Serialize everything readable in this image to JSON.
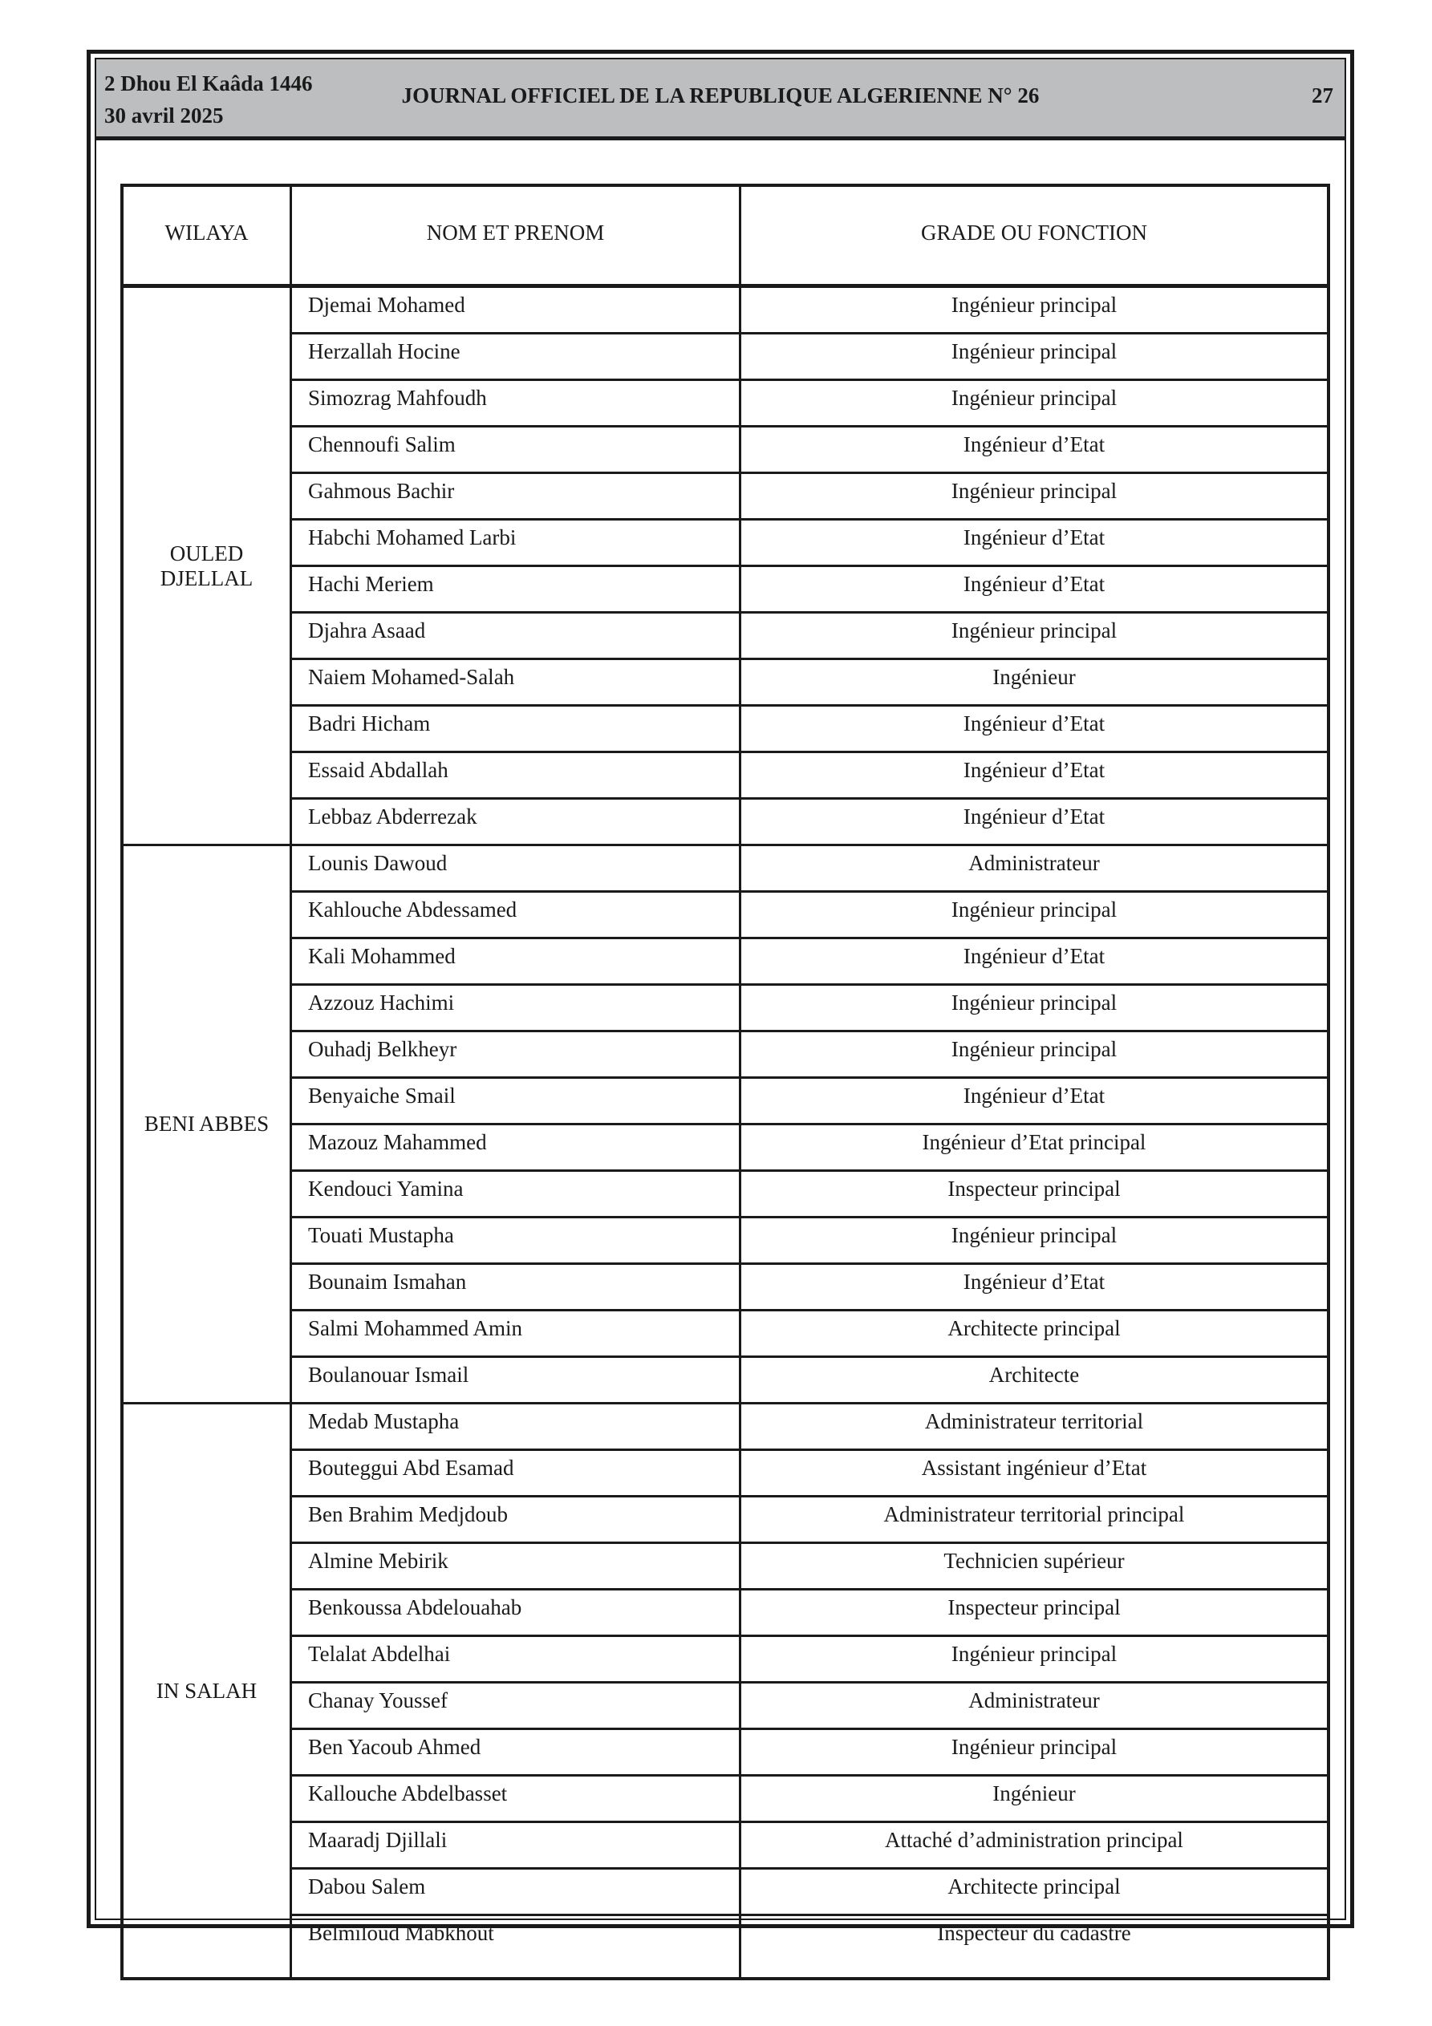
{
  "header": {
    "hijri_date": "2 Dhou El Kaâda 1446",
    "date": "30 avril 2025",
    "title": "JOURNAL OFFICIEL DE LA REPUBLIQUE ALGERIENNE N° 26",
    "page": "27"
  },
  "table": {
    "columns": [
      "WILAYA",
      "NOM ET PRENOM",
      "GRADE OU FONCTION"
    ],
    "groups": [
      {
        "wilaya": "OULED DJELLAL",
        "rows": [
          [
            "Djemai Mohamed",
            "Ingénieur principal"
          ],
          [
            "Herzallah Hocine",
            "Ingénieur principal"
          ],
          [
            "Simozrag Mahfoudh",
            "Ingénieur principal"
          ],
          [
            "Chennoufi Salim",
            "Ingénieur d’Etat"
          ],
          [
            "Gahmous Bachir",
            "Ingénieur principal"
          ],
          [
            "Habchi Mohamed Larbi",
            "Ingénieur d’Etat"
          ],
          [
            "Hachi Meriem",
            "Ingénieur d’Etat"
          ],
          [
            "Djahra Asaad",
            "Ingénieur principal"
          ],
          [
            "Naiem Mohamed-Salah",
            "Ingénieur"
          ],
          [
            "Badri Hicham",
            "Ingénieur d’Etat"
          ],
          [
            "Essaid Abdallah",
            "Ingénieur d’Etat"
          ],
          [
            "Lebbaz Abderrezak",
            "Ingénieur d’Etat"
          ]
        ]
      },
      {
        "wilaya": "BENI ABBES",
        "rows": [
          [
            "Lounis Dawoud",
            "Administrateur"
          ],
          [
            "Kahlouche Abdessamed",
            "Ingénieur principal"
          ],
          [
            "Kali Mohammed",
            "Ingénieur d’Etat"
          ],
          [
            "Azzouz Hachimi",
            "Ingénieur principal"
          ],
          [
            "Ouhadj Belkheyr",
            "Ingénieur principal"
          ],
          [
            "Benyaiche Smail",
            "Ingénieur d’Etat"
          ],
          [
            "Mazouz Mahammed",
            "Ingénieur d’Etat principal"
          ],
          [
            "Kendouci Yamina",
            "Inspecteur principal"
          ],
          [
            "Touati Mustapha",
            "Ingénieur principal"
          ],
          [
            "Bounaim Ismahan",
            "Ingénieur d’Etat"
          ],
          [
            "Salmi Mohammed Amin",
            "Architecte principal"
          ],
          [
            "Boulanouar Ismail",
            "Architecte"
          ]
        ]
      },
      {
        "wilaya": "IN SALAH",
        "rows": [
          [
            "Medab Mustapha",
            "Administrateur territorial"
          ],
          [
            "Bouteggui Abd Esamad",
            "Assistant ingénieur d’Etat"
          ],
          [
            "Ben Brahim Medjdoub",
            "Administrateur territorial principal"
          ],
          [
            "Almine Mebirik",
            "Technicien supérieur"
          ],
          [
            "Benkoussa Abdelouahab",
            "Inspecteur principal"
          ],
          [
            "Telalat Abdelhai",
            "Ingénieur principal"
          ],
          [
            "Chanay Youssef",
            "Administrateur"
          ],
          [
            "Ben Yacoub Ahmed",
            "Ingénieur principal"
          ],
          [
            "Kallouche Abdelbasset",
            "Ingénieur"
          ],
          [
            "Maaradj Djillali",
            "Attaché d’administration principal"
          ],
          [
            "Dabou Salem",
            "Architecte principal"
          ],
          [
            "Belmiloud Mabkhout",
            "Inspecteur du cadastre"
          ]
        ]
      }
    ]
  }
}
